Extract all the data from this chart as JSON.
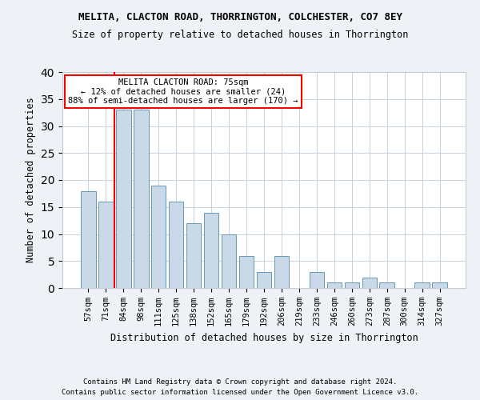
{
  "title1": "MELITA, CLACTON ROAD, THORRINGTON, COLCHESTER, CO7 8EY",
  "title2": "Size of property relative to detached houses in Thorrington",
  "xlabel": "Distribution of detached houses by size in Thorrington",
  "ylabel": "Number of detached properties",
  "categories": [
    "57sqm",
    "71sqm",
    "84sqm",
    "98sqm",
    "111sqm",
    "125sqm",
    "138sqm",
    "152sqm",
    "165sqm",
    "179sqm",
    "192sqm",
    "206sqm",
    "219sqm",
    "233sqm",
    "246sqm",
    "260sqm",
    "273sqm",
    "287sqm",
    "300sqm",
    "314sqm",
    "327sqm"
  ],
  "values": [
    18,
    16,
    33,
    33,
    19,
    16,
    12,
    14,
    10,
    6,
    3,
    6,
    0,
    3,
    1,
    1,
    2,
    1,
    0,
    1,
    1
  ],
  "bar_color": "#c9d9e8",
  "bar_edge_color": "#6699bb",
  "annotation_title": "MELITA CLACTON ROAD: 75sqm",
  "annotation_line1": "← 12% of detached houses are smaller (24)",
  "annotation_line2": "88% of semi-detached houses are larger (170) →",
  "ylim": [
    0,
    40
  ],
  "yticks": [
    0,
    5,
    10,
    15,
    20,
    25,
    30,
    35,
    40
  ],
  "footnote1": "Contains HM Land Registry data © Crown copyright and database right 2024.",
  "footnote2": "Contains public sector information licensed under the Open Government Licence v3.0.",
  "bg_color": "#eef2f7",
  "plot_bg_color": "#ffffff",
  "grid_color": "#c0ccd8"
}
